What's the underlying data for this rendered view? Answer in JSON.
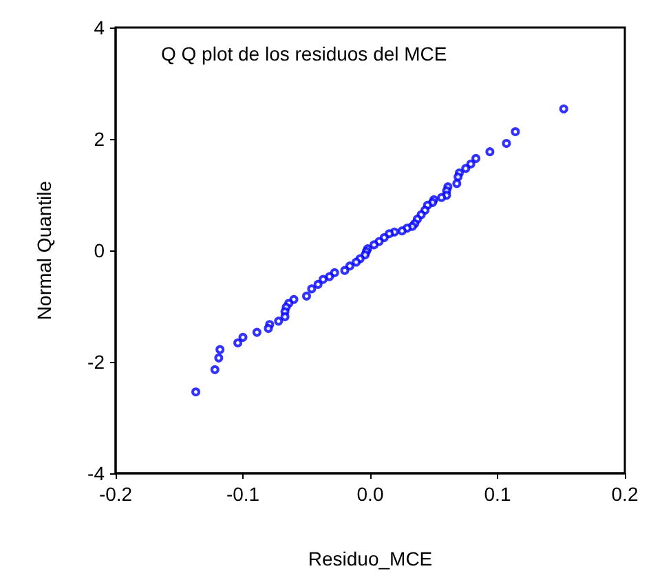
{
  "chart_data": {
    "type": "scatter",
    "title": "Q Q plot de los residuos del MCE",
    "xlabel": "Residuo_MCE",
    "ylabel": "Normal Quantile",
    "marker": "circle",
    "xlim": [
      -0.2,
      0.2
    ],
    "xticks": [
      {
        "value": -0.2,
        "label": "-0.2"
      },
      {
        "value": -0.1,
        "label": "-0.1"
      },
      {
        "value": 0,
        "label": "0.0"
      },
      {
        "value": 0.1,
        "label": "0.1"
      },
      {
        "value": 0.2,
        "label": "0.2"
      }
    ],
    "ylim": [
      -4,
      4
    ],
    "yticks": [
      -4,
      -2,
      0,
      2,
      4
    ],
    "series": [
      {
        "color": "#0000ff",
        "x": [
          0.152,
          0.114,
          0.107,
          0.094,
          0.083,
          0.079,
          0.075,
          0.07,
          0.069,
          0.068,
          0.061,
          0.06,
          0.06,
          0.056,
          0.05,
          0.049,
          0.045,
          0.043,
          0.04,
          0.037,
          0.035,
          0.033,
          0.029,
          0.025,
          0.019,
          0.015,
          0.011,
          0.007,
          0.003,
          -0.002,
          -0.003,
          -0.004,
          -0.008,
          -0.011,
          -0.016,
          -0.02,
          -0.028,
          -0.032,
          -0.037,
          -0.041,
          -0.046,
          -0.05,
          -0.06,
          -0.064,
          -0.066,
          -0.067,
          -0.067,
          -0.072,
          -0.079,
          -0.08,
          -0.089,
          -0.1,
          -0.104,
          -0.118,
          -0.119,
          -0.122,
          -0.137
        ],
        "values": [
          2.54,
          2.13,
          1.92,
          1.77,
          1.65,
          1.55,
          1.47,
          1.39,
          1.32,
          1.2,
          1.14,
          1.07,
          0.99,
          0.95,
          0.91,
          0.86,
          0.81,
          0.72,
          0.64,
          0.56,
          0.48,
          0.43,
          0.4,
          0.35,
          0.33,
          0.3,
          0.23,
          0.16,
          0.1,
          0.03,
          -0.02,
          -0.08,
          -0.15,
          -0.21,
          -0.28,
          -0.36,
          -0.4,
          -0.47,
          -0.52,
          -0.61,
          -0.69,
          -0.82,
          -0.88,
          -0.95,
          -1.02,
          -1.1,
          -1.19,
          -1.27,
          -1.33,
          -1.4,
          -1.47,
          -1.56,
          -1.66,
          -1.78,
          -1.93,
          -2.14,
          -2.54
        ]
      }
    ]
  }
}
